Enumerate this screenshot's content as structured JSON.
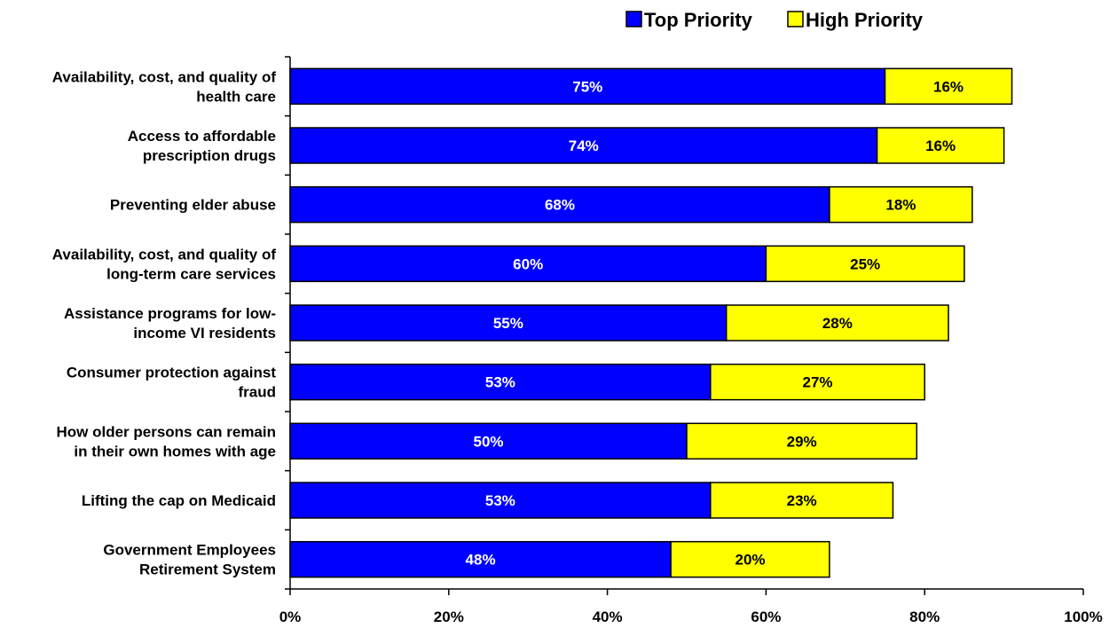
{
  "chart_data": {
    "type": "bar",
    "orientation": "horizontal",
    "stacked": true,
    "title": "",
    "xlabel": "",
    "ylabel": "",
    "xlim": [
      0,
      100
    ],
    "x_ticks": [
      "0%",
      "20%",
      "40%",
      "60%",
      "80%",
      "100%"
    ],
    "x_tick_values": [
      0,
      20,
      40,
      60,
      80,
      100
    ],
    "legend_position": "top-right",
    "categories": [
      [
        "Availability, cost, and quality of",
        "health care"
      ],
      [
        "Access to affordable",
        "prescription drugs"
      ],
      [
        "Preventing elder abuse"
      ],
      [
        "Availability, cost, and quality of",
        "long-term care services"
      ],
      [
        "Assistance programs for low-",
        "income VI residents"
      ],
      [
        "Consumer protection against",
        "fraud"
      ],
      [
        "How older persons can remain",
        "in their own homes with age"
      ],
      [
        "Lifting the cap on Medicaid"
      ],
      [
        "Government Employees",
        "Retirement System"
      ]
    ],
    "series": [
      {
        "name": "Top Priority",
        "color": "#0000ff",
        "label_color": "#ffffff",
        "values": [
          75,
          74,
          68,
          60,
          55,
          53,
          50,
          53,
          48
        ],
        "labels": [
          "75%",
          "74%",
          "68%",
          "60%",
          "55%",
          "53%",
          "50%",
          "53%",
          "48%"
        ]
      },
      {
        "name": "High Priority",
        "color": "#ffff00",
        "label_color": "#000000",
        "values": [
          16,
          16,
          18,
          25,
          28,
          27,
          29,
          23,
          20
        ],
        "labels": [
          "16%",
          "16%",
          "18%",
          "25%",
          "28%",
          "27%",
          "29%",
          "23%",
          "20%"
        ]
      }
    ],
    "grid": false
  }
}
